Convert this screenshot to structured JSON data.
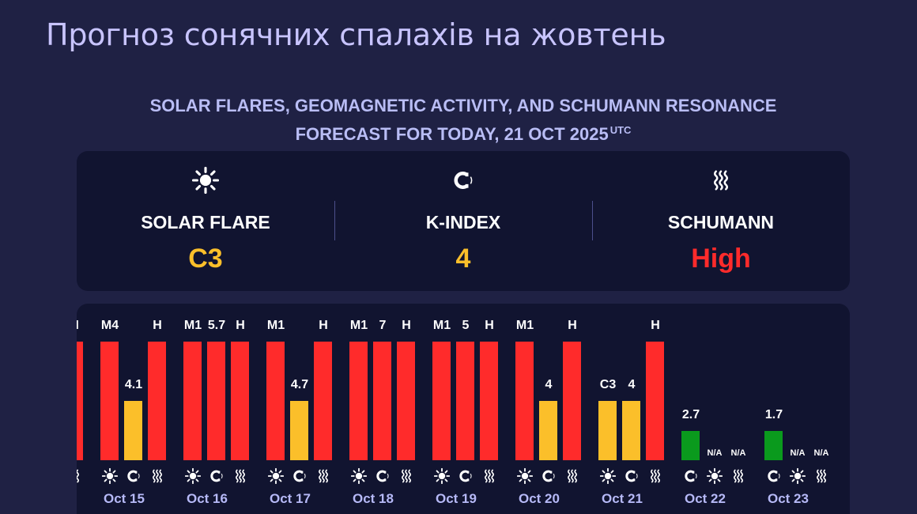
{
  "page": {
    "title": "Прогноз сонячних спалахів на жовтень"
  },
  "header": {
    "subtitle_line1": "SOLAR FLARES, GEOMAGNETIC ACTIVITY, AND SCHUMANN RESONANCE",
    "subtitle_line2": "FORECAST FOR TODAY, 21 OCT 2025",
    "subtitle_sup": "UTC"
  },
  "summary": {
    "solar_flare": {
      "label": "SOLAR FLARE",
      "value": "C3",
      "icon": "sun-icon",
      "color": "#fbbf2a"
    },
    "k_index": {
      "label": "K-INDEX",
      "value": "4",
      "icon": "magnet-icon",
      "color": "#fbbf2a"
    },
    "schumann": {
      "label": "SCHUMANN",
      "value": "High",
      "icon": "waves-icon",
      "color": "#ff2b2b"
    }
  },
  "colors": {
    "high": "#ff2b2b",
    "medium": "#fbbf2a",
    "low": "#0a9a1d"
  },
  "chart_data": {
    "type": "bar",
    "partial_left": {
      "label": "H",
      "level": "high"
    },
    "days": [
      {
        "date": "Oct 15",
        "bars": [
          {
            "metric": "solar-flare",
            "label": "M4",
            "level": "high"
          },
          {
            "metric": "k-index",
            "label": "4.1",
            "level": "medium"
          },
          {
            "metric": "schumann",
            "label": "H",
            "level": "high"
          }
        ]
      },
      {
        "date": "Oct 16",
        "bars": [
          {
            "metric": "solar-flare",
            "label": "M1",
            "level": "high"
          },
          {
            "metric": "k-index",
            "label": "5.7",
            "level": "high"
          },
          {
            "metric": "schumann",
            "label": "H",
            "level": "high"
          }
        ]
      },
      {
        "date": "Oct 17",
        "bars": [
          {
            "metric": "solar-flare",
            "label": "M1",
            "level": "high"
          },
          {
            "metric": "k-index",
            "label": "4.7",
            "level": "medium"
          },
          {
            "metric": "schumann",
            "label": "H",
            "level": "high"
          }
        ]
      },
      {
        "date": "Oct 18",
        "bars": [
          {
            "metric": "solar-flare",
            "label": "M1",
            "level": "high"
          },
          {
            "metric": "k-index",
            "label": "7",
            "level": "high"
          },
          {
            "metric": "schumann",
            "label": "H",
            "level": "high"
          }
        ]
      },
      {
        "date": "Oct 19",
        "bars": [
          {
            "metric": "solar-flare",
            "label": "M1",
            "level": "high"
          },
          {
            "metric": "k-index",
            "label": "5",
            "level": "high"
          },
          {
            "metric": "schumann",
            "label": "H",
            "level": "high"
          }
        ]
      },
      {
        "date": "Oct 20",
        "bars": [
          {
            "metric": "solar-flare",
            "label": "M1",
            "level": "high"
          },
          {
            "metric": "k-index",
            "label": "4",
            "level": "medium"
          },
          {
            "metric": "schumann",
            "label": "H",
            "level": "high"
          }
        ]
      },
      {
        "date": "Oct 21",
        "bars": [
          {
            "metric": "solar-flare",
            "label": "C3",
            "level": "medium"
          },
          {
            "metric": "k-index",
            "label": "4",
            "level": "medium"
          },
          {
            "metric": "schumann",
            "label": "H",
            "level": "high"
          }
        ]
      },
      {
        "date": "Oct 22",
        "bars": [
          {
            "metric": "k-index",
            "label": "2.7",
            "level": "low"
          },
          {
            "metric": "solar-flare",
            "label": "N/A",
            "level": "none"
          },
          {
            "metric": "schumann",
            "label": "N/A",
            "level": "none"
          }
        ]
      },
      {
        "date": "Oct 23",
        "bars": [
          {
            "metric": "k-index",
            "label": "1.7",
            "level": "low"
          },
          {
            "metric": "solar-flare",
            "label": "N/A",
            "level": "none"
          },
          {
            "metric": "schumann",
            "label": "N/A",
            "level": "none"
          }
        ]
      }
    ]
  }
}
